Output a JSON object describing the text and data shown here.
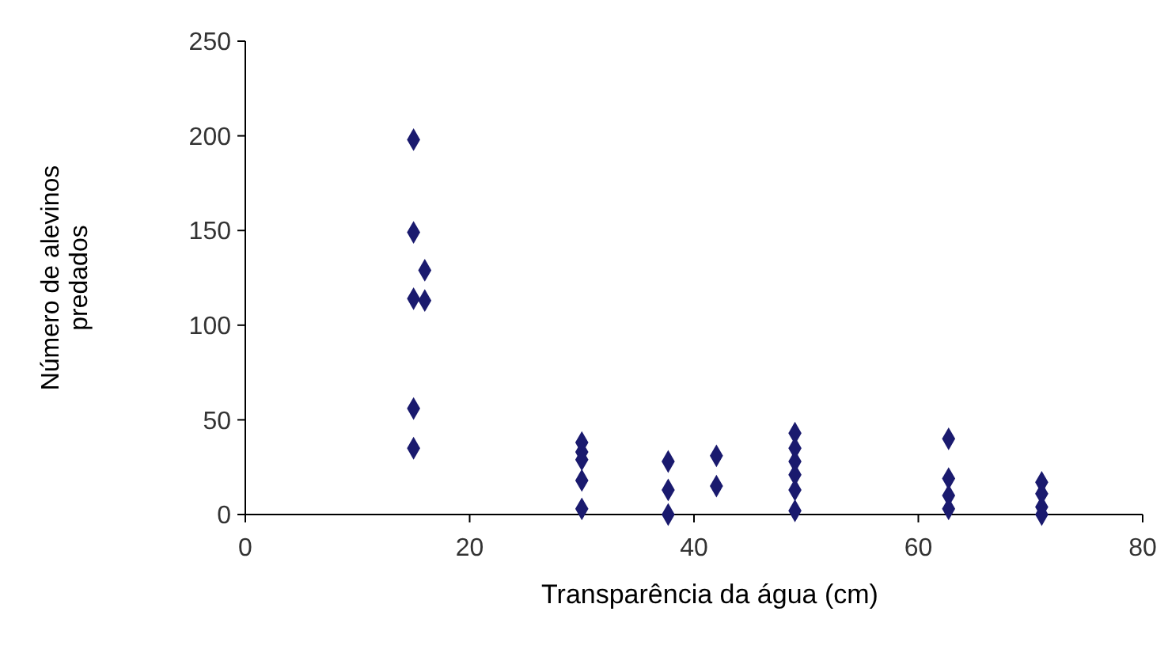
{
  "chart_data": {
    "type": "scatter",
    "xlabel": "Transparência da água (cm)",
    "ylabel": "Número de alevinos predados",
    "series": [
      {
        "color": "#1a1a6e",
        "x": [
          15,
          15,
          15,
          15,
          15,
          16,
          16,
          30,
          30,
          30,
          30,
          30,
          37.7,
          37.7,
          37.7,
          42,
          42,
          49,
          49,
          49,
          49,
          49,
          49,
          62.7,
          62.7,
          62.7,
          62.7,
          71,
          71,
          71,
          71
        ],
        "values": [
          198,
          149,
          114,
          56,
          35,
          129,
          113,
          38,
          33,
          29,
          18,
          3,
          28,
          13,
          0,
          31,
          15,
          43,
          35,
          28,
          21,
          13,
          2,
          40,
          19,
          10,
          3,
          17,
          11,
          4,
          0
        ]
      }
    ],
    "xlim": [
      0,
      80
    ],
    "xticks": [
      0,
      20,
      40,
      60,
      80
    ],
    "ylim": [
      0,
      250
    ],
    "yticks": [
      0,
      50,
      100,
      150,
      200,
      250
    ],
    "marker": "diamond"
  }
}
